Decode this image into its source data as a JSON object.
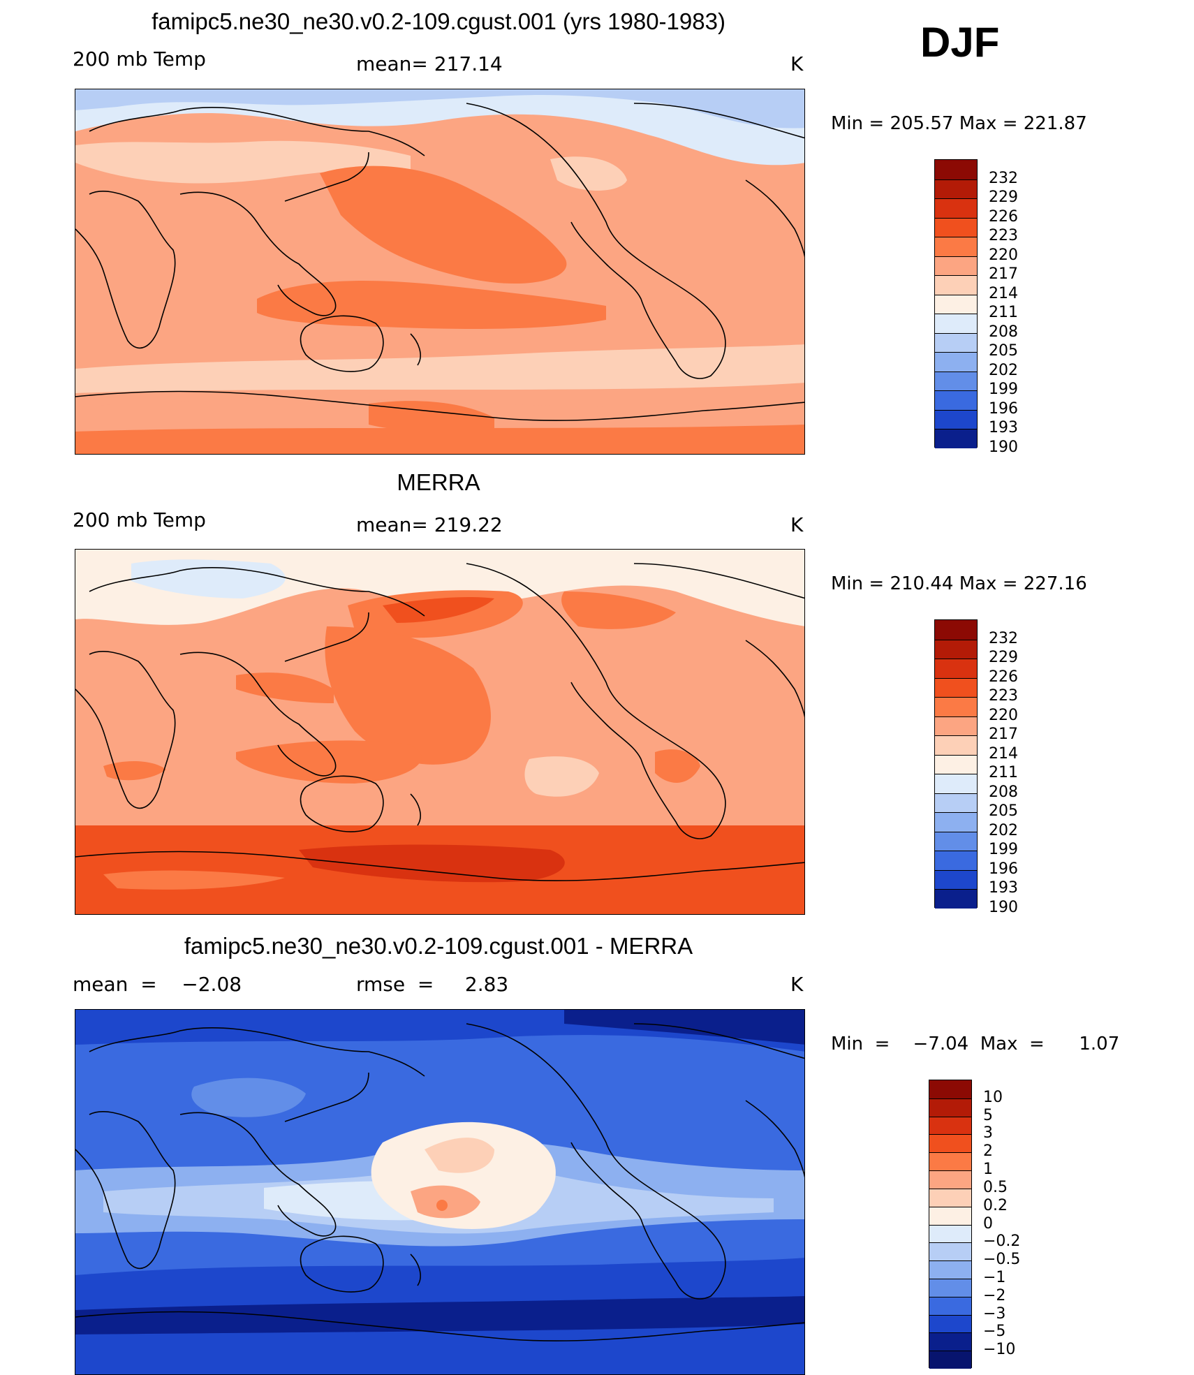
{
  "season": "DJF",
  "unit_label": "K",
  "panels": [
    {
      "title": "famipc5.ne30_ne30.v0.2-109.cgust.001 (yrs 1980-1983)",
      "left_label": "200 mb Temp",
      "center_label": "mean=  217.14",
      "right_label": "K",
      "minmax": "Min  =  205.57  Max  =  221.87",
      "colorbar": {
        "labels": [
          "232",
          "229",
          "226",
          "223",
          "220",
          "217",
          "214",
          "211",
          "208",
          "205",
          "202",
          "199",
          "196",
          "193",
          "190"
        ],
        "colors": [
          "#8c0a04",
          "#b31b07",
          "#d93210",
          "#f0501e",
          "#fb7a45",
          "#fca582",
          "#fdd0b7",
          "#fdf0e4",
          "#deebfa",
          "#b7cef5",
          "#8db0f0",
          "#628ee8",
          "#3a6ae0",
          "#1d47cc",
          "#0a1f8c"
        ]
      }
    },
    {
      "title": "MERRA",
      "left_label": "200 mb Temp",
      "center_label": "mean=  219.22",
      "right_label": "K",
      "minmax": "Min  =  210.44  Max  =  227.16",
      "colorbar": {
        "labels": [
          "232",
          "229",
          "226",
          "223",
          "220",
          "217",
          "214",
          "211",
          "208",
          "205",
          "202",
          "199",
          "196",
          "193",
          "190"
        ],
        "colors": [
          "#8c0a04",
          "#b31b07",
          "#d93210",
          "#f0501e",
          "#fb7a45",
          "#fca582",
          "#fdd0b7",
          "#fdf0e4",
          "#deebfa",
          "#b7cef5",
          "#8db0f0",
          "#628ee8",
          "#3a6ae0",
          "#1d47cc",
          "#0a1f8c"
        ]
      }
    },
    {
      "title": "famipc5.ne30_ne30.v0.2-109.cgust.001 - MERRA",
      "left_label": "mean  =    −2.08",
      "center_label": "rmse  =     2.83",
      "right_label": "K",
      "minmax": "Min  =    −7.04  Max  =      1.07",
      "colorbar": {
        "labels": [
          "10",
          "5",
          "3",
          "2",
          "1",
          "0.5",
          "0.2",
          "0",
          "−0.2",
          "−0.5",
          "−1",
          "−2",
          "−3",
          "−5",
          "−10"
        ],
        "colors": [
          "#8c0a04",
          "#b31b07",
          "#d93210",
          "#f0501e",
          "#fb7a45",
          "#fca582",
          "#fdd0b7",
          "#fdf0e4",
          "#deebfa",
          "#b7cef5",
          "#8db0f0",
          "#628ee8",
          "#3a6ae0",
          "#1d47cc",
          "#0a1f8c",
          "#07146e"
        ]
      }
    }
  ],
  "icons": {
    "coastline": "world-coastline-map-pacific-centered"
  }
}
